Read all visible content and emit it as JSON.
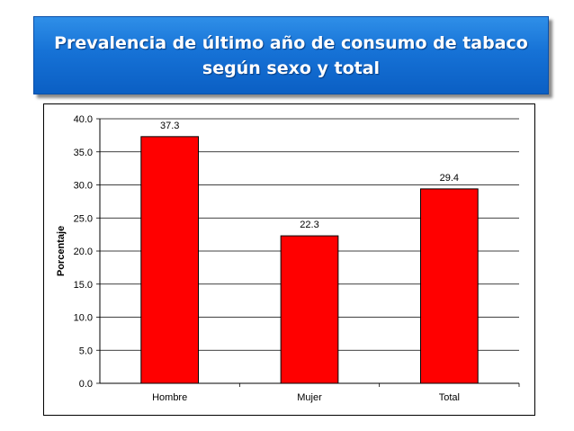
{
  "title": {
    "line1": "Prevalencia de último año de consumo de tabaco",
    "line2": "según sexo y total"
  },
  "chart_data": {
    "type": "bar",
    "categories": [
      "Hombre",
      "Mujer",
      "Total"
    ],
    "values": [
      37.3,
      22.3,
      29.4
    ],
    "value_labels": [
      "37.3",
      "22.3",
      "29.4"
    ],
    "ylabel": "Porcentaje",
    "xlabel": "",
    "ylim": [
      0,
      40
    ],
    "yticks": [
      "0.0",
      "5.0",
      "10.0",
      "15.0",
      "20.0",
      "25.0",
      "30.0",
      "35.0",
      "40.0"
    ],
    "grid": true,
    "bar_color": "#ff0000",
    "bar_outline": "#000000"
  }
}
